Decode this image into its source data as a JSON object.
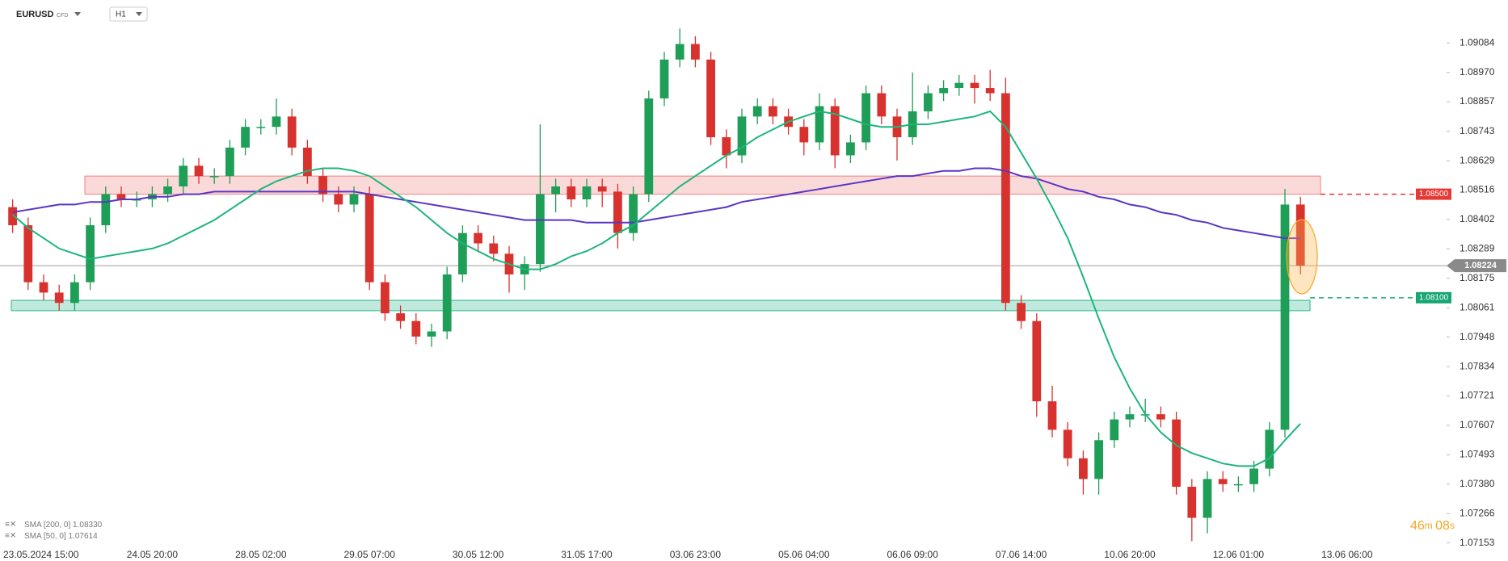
{
  "chart_data": {
    "type": "candlestick",
    "symbol": "EURUSD",
    "instrument_type": "CFD",
    "timeframe": "H1",
    "categories": [
      "23.05.2024 15:00",
      null,
      null,
      null,
      null,
      null,
      null,
      null,
      null,
      "24.05 20:00",
      null,
      null,
      null,
      null,
      null,
      null,
      "28.05 02:00",
      null,
      null,
      null,
      null,
      null,
      null,
      "29.05 07:00",
      null,
      null,
      null,
      null,
      null,
      null,
      "30.05 12:00",
      null,
      null,
      null,
      null,
      null,
      null,
      "31.05 17:00",
      null,
      null,
      null,
      null,
      null,
      null,
      "03.06 23:00",
      null,
      null,
      null,
      null,
      null,
      null,
      "05.06 04:00",
      null,
      null,
      null,
      null,
      null,
      null,
      "06.06 09:00",
      null,
      null,
      null,
      null,
      null,
      null,
      "07.06 14:00",
      null,
      null,
      null,
      null,
      null,
      null,
      "10.06 20:00",
      null,
      null,
      null,
      null,
      null,
      null,
      "12.06 01:00",
      null,
      null,
      null,
      null,
      null,
      null,
      "13.06 06:00"
    ],
    "open": [
      1.0845,
      1.0838,
      1.0816,
      1.0812,
      1.0808,
      1.0816,
      1.0838,
      1.085,
      1.0848,
      1.0848,
      1.085,
      1.0853,
      1.0861,
      1.0857,
      1.0857,
      1.0868,
      1.0876,
      1.0876,
      1.088,
      1.0868,
      1.0857,
      1.085,
      1.0846,
      1.085,
      1.0816,
      1.0804,
      1.0801,
      1.0795,
      1.0797,
      1.0819,
      1.0835,
      1.0831,
      1.0827,
      1.0819,
      1.0823,
      1.085,
      1.0853,
      1.0848,
      1.0853,
      1.0851,
      1.0835,
      1.085,
      1.0887,
      1.0902,
      1.0908,
      1.0902,
      1.0872,
      1.0865,
      1.088,
      1.0884,
      1.088,
      1.0876,
      1.087,
      1.0884,
      1.0865,
      1.087,
      1.0889,
      1.088,
      1.0872,
      1.0882,
      1.0889,
      1.0891,
      1.0893,
      1.0891,
      1.0889,
      1.0808,
      1.0801,
      1.077,
      1.0759,
      1.0748,
      1.074,
      1.0755,
      1.0763,
      1.0765,
      1.0765,
      1.0763,
      1.0737,
      1.0725,
      1.074,
      1.0738,
      1.0738,
      1.0744,
      1.0759,
      1.0846,
      null,
      null,
      null
    ],
    "high": [
      1.0848,
      1.0841,
      1.0819,
      1.0815,
      1.0819,
      1.0841,
      1.0853,
      1.0853,
      1.0851,
      1.0853,
      1.0856,
      1.0864,
      1.0864,
      1.086,
      1.0871,
      1.0879,
      1.0879,
      1.0887,
      1.0883,
      1.0871,
      1.086,
      1.0853,
      1.0853,
      1.0853,
      1.0819,
      1.0807,
      1.0804,
      1.08,
      1.0822,
      1.0838,
      1.0838,
      1.0834,
      1.083,
      1.0826,
      1.0877,
      1.0856,
      1.0856,
      1.0856,
      1.0856,
      1.0854,
      1.0853,
      1.089,
      1.0905,
      1.0914,
      1.0911,
      1.0905,
      1.0875,
      1.0883,
      1.0887,
      1.0887,
      1.0883,
      1.0879,
      1.0889,
      1.0887,
      1.0873,
      1.0892,
      1.0892,
      1.0883,
      1.0897,
      1.0892,
      1.0894,
      1.0896,
      1.0896,
      1.0898,
      1.0895,
      1.0811,
      1.0804,
      1.0776,
      1.0762,
      1.0751,
      1.0758,
      1.0766,
      1.0768,
      1.0771,
      1.0768,
      1.0766,
      1.074,
      1.0743,
      1.0743,
      1.0741,
      1.0747,
      1.0762,
      1.0852,
      1.0849,
      null,
      null,
      null
    ],
    "low": [
      1.0835,
      1.0813,
      1.0809,
      1.0805,
      1.0805,
      1.0813,
      1.0835,
      1.0845,
      1.0845,
      1.0845,
      1.0847,
      1.085,
      1.0854,
      1.0854,
      1.0854,
      1.0865,
      1.0873,
      1.0873,
      1.0865,
      1.0854,
      1.0847,
      1.0843,
      1.0843,
      1.0813,
      1.0801,
      1.0798,
      1.0792,
      1.0791,
      1.0794,
      1.0816,
      1.0828,
      1.0824,
      1.0812,
      1.0813,
      1.082,
      1.0843,
      1.0845,
      1.0845,
      1.0845,
      1.0829,
      1.0832,
      1.0847,
      1.0884,
      1.0899,
      1.0899,
      1.0869,
      1.086,
      1.0862,
      1.0877,
      1.0877,
      1.0873,
      1.0865,
      1.0867,
      1.086,
      1.0862,
      1.0867,
      1.0877,
      1.0863,
      1.0869,
      1.0879,
      1.0886,
      1.0888,
      1.0885,
      1.0886,
      1.0805,
      1.0798,
      1.0764,
      1.0756,
      1.0745,
      1.0734,
      1.0734,
      1.0752,
      1.076,
      1.0762,
      1.076,
      1.0734,
      1.0716,
      1.0719,
      1.0735,
      1.0735,
      1.0735,
      1.0741,
      1.0756,
      1.0819,
      null,
      null,
      null
    ],
    "close": [
      1.0838,
      1.0816,
      1.0812,
      1.0808,
      1.0816,
      1.0838,
      1.085,
      1.0848,
      1.0848,
      1.085,
      1.0853,
      1.0861,
      1.0857,
      1.0857,
      1.0868,
      1.0876,
      1.0876,
      1.088,
      1.0868,
      1.0857,
      1.085,
      1.0846,
      1.085,
      1.0816,
      1.0804,
      1.0801,
      1.0795,
      1.0797,
      1.0819,
      1.0835,
      1.0831,
      1.0827,
      1.0819,
      1.0823,
      1.085,
      1.0853,
      1.0848,
      1.0853,
      1.0851,
      1.0835,
      1.085,
      1.0887,
      1.0902,
      1.0908,
      1.0902,
      1.0872,
      1.0865,
      1.088,
      1.0884,
      1.088,
      1.0876,
      1.087,
      1.0884,
      1.0865,
      1.087,
      1.0889,
      1.088,
      1.0872,
      1.0882,
      1.0889,
      1.0891,
      1.0893,
      1.0891,
      1.0889,
      1.0808,
      1.0801,
      1.077,
      1.0759,
      1.0748,
      1.074,
      1.0755,
      1.0763,
      1.0765,
      1.0765,
      1.0763,
      1.0737,
      1.0725,
      1.074,
      1.0738,
      1.0738,
      1.0744,
      1.0759,
      1.0846,
      1.08224,
      null,
      null,
      null
    ],
    "up_color": "#1e9e57",
    "down_color": "#d8322e",
    "series": [
      {
        "name": "SMA [200, 0]",
        "color": "#5b35c4",
        "legend_value": "1.08330",
        "values": [
          1.0843,
          1.0844,
          1.0845,
          1.0846,
          1.0846,
          1.0847,
          1.0847,
          1.0848,
          1.0848,
          1.0849,
          1.0849,
          1.085,
          1.085,
          1.0851,
          1.0851,
          1.0851,
          1.0851,
          1.0851,
          1.0851,
          1.0851,
          1.0851,
          1.0851,
          1.0851,
          1.085,
          1.0849,
          1.0848,
          1.0847,
          1.0846,
          1.0845,
          1.0844,
          1.0843,
          1.0842,
          1.0841,
          1.084,
          1.084,
          1.084,
          1.084,
          1.0839,
          1.0839,
          1.0839,
          1.0839,
          1.084,
          1.0841,
          1.0842,
          1.0843,
          1.0844,
          1.0845,
          1.0847,
          1.0848,
          1.0849,
          1.085,
          1.0851,
          1.0852,
          1.0853,
          1.0854,
          1.0855,
          1.0856,
          1.0857,
          1.0857,
          1.0858,
          1.0859,
          1.0859,
          1.086,
          1.086,
          1.0859,
          1.0857,
          1.0856,
          1.0854,
          1.0852,
          1.0851,
          1.0849,
          1.0848,
          1.0846,
          1.0845,
          1.0843,
          1.0842,
          1.084,
          1.0839,
          1.0837,
          1.0836,
          1.0835,
          1.0834,
          1.0833,
          1.0833,
          null,
          null,
          null
        ]
      },
      {
        "name": "SMA [50, 0]",
        "color": "#1db57c",
        "legend_value": "1.07614",
        "values": [
          1.0842,
          1.0837,
          1.0833,
          1.0829,
          1.0827,
          1.0825,
          1.0826,
          1.0827,
          1.0828,
          1.0829,
          1.0831,
          1.0834,
          1.0837,
          1.084,
          1.0844,
          1.0848,
          1.0852,
          1.0855,
          1.0857,
          1.0859,
          1.086,
          1.086,
          1.0859,
          1.0857,
          1.0853,
          1.0849,
          1.0845,
          1.084,
          1.0835,
          1.0831,
          1.0828,
          1.0825,
          1.0823,
          1.0821,
          1.0821,
          1.0823,
          1.0826,
          1.0828,
          1.0831,
          1.0835,
          1.0838,
          1.0843,
          1.0848,
          1.0853,
          1.0857,
          1.0861,
          1.0865,
          1.0868,
          1.0872,
          1.0875,
          1.0878,
          1.088,
          1.0882,
          1.0881,
          1.0879,
          1.0877,
          1.0876,
          1.0876,
          1.0877,
          1.0877,
          1.0878,
          1.0879,
          1.088,
          1.0882,
          1.0876,
          1.0866,
          1.0856,
          1.0845,
          1.0833,
          1.0818,
          1.0802,
          1.0787,
          1.0775,
          1.0765,
          1.0758,
          1.0753,
          1.075,
          1.0748,
          1.0746,
          1.0745,
          1.0745,
          1.0748,
          1.0755,
          1.07614,
          null,
          null,
          null
        ]
      }
    ],
    "ylim": [
      1.0713,
      1.0925
    ],
    "yticks": [
      1.09084,
      {
        "value": 1.0897,
        "label": "1.08970"
      },
      1.08857,
      1.08743,
      1.08629,
      1.08516,
      1.08402,
      1.08289,
      1.08175,
      1.08061,
      1.07948,
      1.07834,
      1.07721,
      1.07607,
      1.07493,
      {
        "value": 1.0738,
        "label": "1.07380"
      },
      1.07266,
      1.07153
    ],
    "grid": false,
    "zones": [
      {
        "from": 1.085,
        "to": 1.0857,
        "color": "#f08080"
      },
      {
        "from": 1.0805,
        "to": 1.0809,
        "color": "#2bb58c"
      }
    ],
    "levels": [
      {
        "value": 1.085,
        "label": "1.08500",
        "color": "#e53935"
      },
      {
        "value": 1.081,
        "label": "1.08100",
        "color": "#17a673"
      }
    ],
    "last_price": 1.08224,
    "timer": {
      "minutes": "46",
      "minutes_unit": "m",
      "seconds": "08",
      "seconds_unit": "s"
    }
  }
}
